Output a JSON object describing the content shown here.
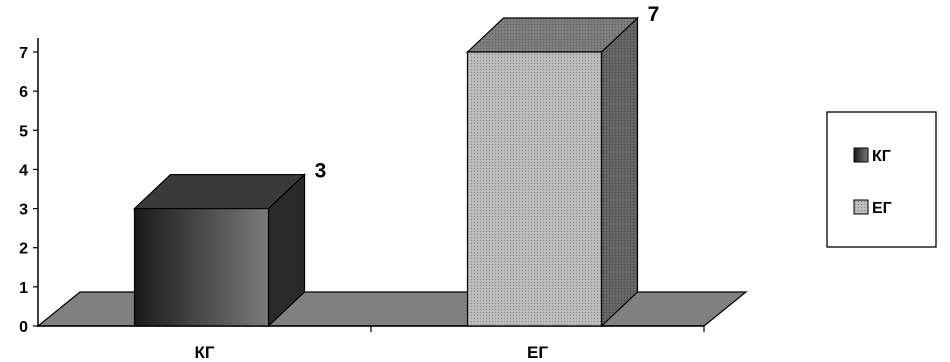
{
  "chart_data": {
    "type": "bar",
    "style": "3d-column",
    "categories": [
      "КГ",
      "ЕГ"
    ],
    "values": [
      3,
      7
    ],
    "data_labels": [
      "3",
      "7"
    ],
    "ylim": [
      0,
      7
    ],
    "yticks": [
      "0",
      "1",
      "2",
      "3",
      "4",
      "5",
      "6",
      "7"
    ],
    "legend": {
      "position": "right",
      "entries": [
        "КГ",
        "ЕГ"
      ]
    },
    "grid": false,
    "colors": {
      "floor": "#808080",
      "kg_front_dark": "#1a1a1a",
      "kg_front_light": "#7a7a7a",
      "kg_top": "#3a3a3a",
      "kg_side": "#2a2a2a",
      "eg_front": "#b8b8b8",
      "eg_top": "#7a7a7a",
      "eg_side": "#626262"
    }
  }
}
